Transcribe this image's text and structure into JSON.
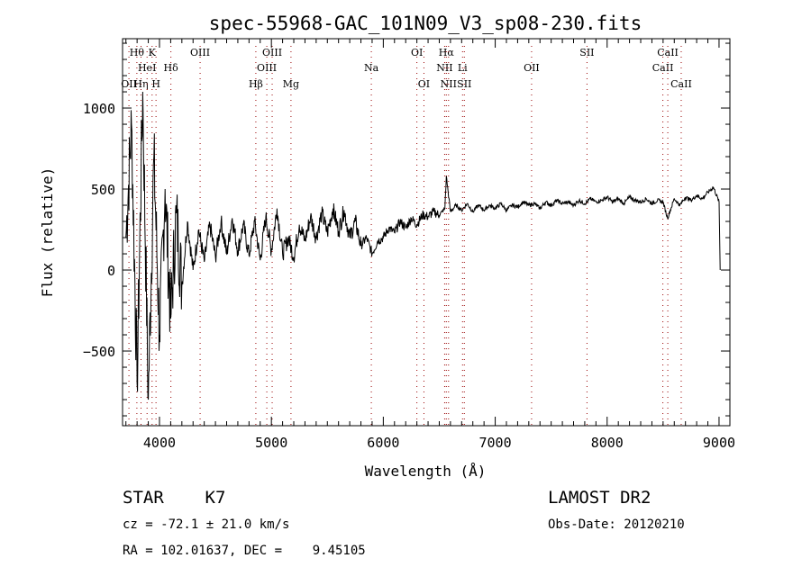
{
  "chart_data": {
    "type": "line",
    "title": "spec-55968-GAC_101N09_V3_sp08-230.fits",
    "xlabel": "Wavelength (Å)",
    "ylabel": "Flux (relative)",
    "xlim": [
      3670,
      9097
    ],
    "ylim": [
      -961,
      1428
    ],
    "xticks": [
      4000,
      5000,
      6000,
      7000,
      8000,
      9000
    ],
    "yticks": [
      -500,
      0,
      500,
      1000
    ],
    "grid": false,
    "series": [
      {
        "name": "flux",
        "x": [
          3700,
          3750,
          3800,
          3850,
          3900,
          3950,
          4000,
          4050,
          4100,
          4150,
          4200,
          4250,
          4300,
          4350,
          4400,
          4450,
          4500,
          4550,
          4600,
          4650,
          4700,
          4750,
          4800,
          4850,
          4900,
          4950,
          5000,
          5050,
          5100,
          5150,
          5200,
          5250,
          5300,
          5350,
          5400,
          5450,
          5500,
          5550,
          5600,
          5650,
          5700,
          5750,
          5800,
          5850,
          5900,
          5950,
          6000,
          6050,
          6100,
          6150,
          6200,
          6250,
          6300,
          6350,
          6400,
          6450,
          6500,
          6550,
          6563,
          6600,
          6650,
          6700,
          6750,
          6800,
          6850,
          6900,
          6950,
          7000,
          7050,
          7100,
          7150,
          7200,
          7250,
          7300,
          7350,
          7400,
          7450,
          7500,
          7550,
          7600,
          7650,
          7700,
          7750,
          7800,
          7850,
          7900,
          7950,
          8000,
          8050,
          8100,
          8150,
          8200,
          8250,
          8300,
          8350,
          8400,
          8450,
          8500,
          8540,
          8600,
          8650,
          8700,
          8750,
          8800,
          8850,
          8900,
          8950,
          9000,
          9010
        ],
        "y": [
          200,
          900,
          -700,
          1100,
          -800,
          700,
          -400,
          500,
          -300,
          350,
          -100,
          300,
          0,
          250,
          50,
          280,
          80,
          300,
          100,
          320,
          120,
          280,
          90,
          300,
          60,
          330,
          120,
          380,
          100,
          200,
          80,
          280,
          180,
          330,
          200,
          350,
          230,
          380,
          240,
          370,
          200,
          300,
          150,
          200,
          100,
          180,
          200,
          260,
          230,
          300,
          260,
          320,
          280,
          340,
          330,
          360,
          340,
          380,
          580,
          360,
          400,
          370,
          410,
          360,
          400,
          370,
          400,
          380,
          410,
          370,
          400,
          390,
          420,
          400,
          410,
          380,
          420,
          400,
          430,
          410,
          420,
          400,
          430,
          410,
          440,
          420,
          430,
          450,
          420,
          440,
          410,
          450,
          430,
          420,
          440,
          410,
          430,
          420,
          320,
          440,
          400,
          450,
          430,
          460,
          440,
          480,
          510,
          420,
          0
        ]
      }
    ],
    "lines": [
      {
        "label": "OII",
        "wave": 3727,
        "row": 3
      },
      {
        "label": "Hθ",
        "wave": 3798,
        "row": 1
      },
      {
        "label": "Hη",
        "wave": 3835,
        "row": 3
      },
      {
        "label": "HeI",
        "wave": 3889,
        "row": 2
      },
      {
        "label": "K",
        "wave": 3934,
        "row": 1
      },
      {
        "label": "H",
        "wave": 3969,
        "row": 3
      },
      {
        "label": "Hδ",
        "wave": 4102,
        "row": 2
      },
      {
        "label": "OIII",
        "wave": 4363,
        "row": 1
      },
      {
        "label": "Hβ",
        "wave": 4861,
        "row": 3
      },
      {
        "label": "OIII",
        "wave": 4959,
        "row": 2
      },
      {
        "label": "OIII",
        "wave": 5007,
        "row": 1
      },
      {
        "label": "Mg",
        "wave": 5175,
        "row": 3
      },
      {
        "label": "Na",
        "wave": 5893,
        "row": 2
      },
      {
        "label": "OI",
        "wave": 6300,
        "row": 1
      },
      {
        "label": "OI",
        "wave": 6363,
        "row": 3
      },
      {
        "label": "NII",
        "wave": 6548,
        "row": 2
      },
      {
        "label": "Hα",
        "wave": 6563,
        "row": 1
      },
      {
        "label": "NII",
        "wave": 6583,
        "row": 3
      },
      {
        "label": "Li",
        "wave": 6708,
        "row": 2
      },
      {
        "label": "SII",
        "wave": 6724,
        "row": 3
      },
      {
        "label": "OII",
        "wave": 7325,
        "row": 2
      },
      {
        "label": "SII",
        "wave": 7820,
        "row": 1
      },
      {
        "label": "CaII",
        "wave": 8498,
        "row": 2
      },
      {
        "label": "CaII",
        "wave": 8542,
        "row": 1
      },
      {
        "label": "CaII",
        "wave": 8662,
        "row": 3
      }
    ]
  },
  "info": {
    "class": "STAR    K7",
    "cz": "cz = -72.1 ± 21.0 km/s",
    "radec": "RA = 102.01637, DEC =    9.45105",
    "survey": "LAMOST DR2",
    "obsdate": "Obs-Date: 20120210"
  }
}
